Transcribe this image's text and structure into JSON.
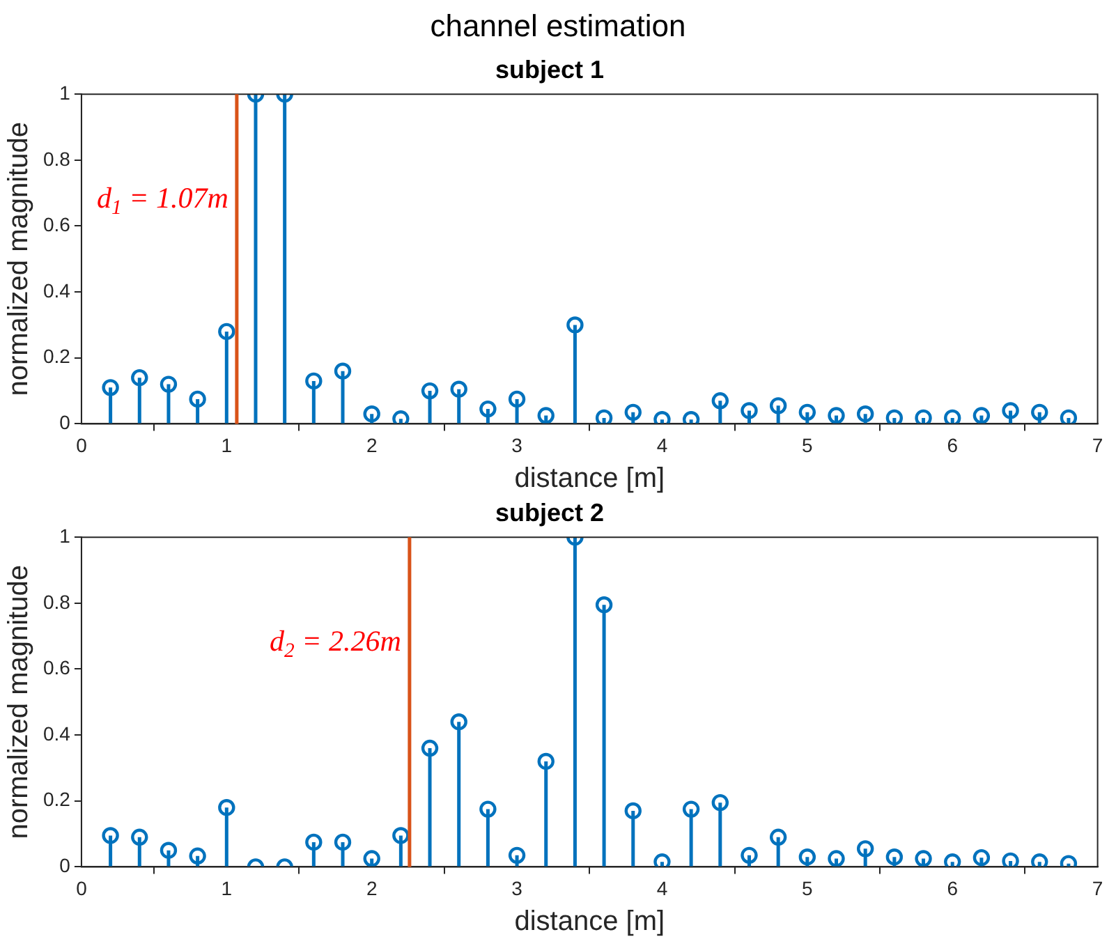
{
  "chart_data": [
    {
      "type": "lollipop",
      "title": "channel estimation",
      "subtitle": "subject 1",
      "xlabel": "distance [m]",
      "ylabel": "normalized magnitude",
      "x": [
        0.2,
        0.4,
        0.6,
        0.8,
        1.0,
        1.2,
        1.4,
        1.6,
        1.8,
        2.0,
        2.2,
        2.4,
        2.6,
        2.8,
        3.0,
        3.2,
        3.4,
        3.6,
        3.8,
        4.0,
        4.2,
        4.4,
        4.6,
        4.8,
        5.0,
        5.2,
        5.4,
        5.6,
        5.8,
        6.0,
        6.2,
        6.4,
        6.6,
        6.8
      ],
      "series": [
        {
          "color": "#0072bd",
          "values": [
            0.11,
            0.14,
            0.12,
            0.075,
            0.28,
            1,
            1,
            0.13,
            0.16,
            0.03,
            0.015,
            0.1,
            0.105,
            0.045,
            0.075,
            0.025,
            0.3,
            0.018,
            0.035,
            0.013,
            0.013,
            0.07,
            0.04,
            0.055,
            0.035,
            0.025,
            0.03,
            0.018,
            0.018,
            0.018,
            0.025,
            0.04,
            0.035,
            0.018
          ]
        }
      ],
      "xlim": [
        0,
        7
      ],
      "xticks": [
        0,
        1,
        2,
        3,
        4,
        5,
        6,
        7
      ],
      "ylim": [
        0,
        1
      ],
      "yticks": [
        0,
        0.2,
        0.4,
        0.6,
        0.8,
        1
      ],
      "grid": false,
      "legend": false,
      "marker": "circle",
      "ref_lines": [
        {
          "axis": "x",
          "value": 1.07,
          "color": "#d95319",
          "label": "d$_{1}$ = 1.07m"
        }
      ]
    },
    {
      "type": "lollipop",
      "title": "subject 2",
      "xlabel": "distance [m]",
      "ylabel": "normalized magnitude",
      "x": [
        0.2,
        0.4,
        0.6,
        0.8,
        1.0,
        1.2,
        1.4,
        1.6,
        1.8,
        2.0,
        2.2,
        2.4,
        2.6,
        2.8,
        3.0,
        3.2,
        3.4,
        3.6,
        3.8,
        4.0,
        4.2,
        4.4,
        4.6,
        4.8,
        5.0,
        5.2,
        5.4,
        5.6,
        5.8,
        6.0,
        6.2,
        6.4,
        6.6,
        6.8
      ],
      "series": [
        {
          "color": "#0072bd",
          "values": [
            0.095,
            0.09,
            0.05,
            0.033,
            0.18,
            0,
            0,
            0.075,
            0.075,
            0.025,
            0.095,
            0.36,
            0.44,
            0.175,
            0.035,
            0.32,
            1,
            0.795,
            0.17,
            0.015,
            0.175,
            0.195,
            0.035,
            0.09,
            0.03,
            0.025,
            0.055,
            0.03,
            0.025,
            0.015,
            0.028,
            0.018,
            0.015,
            0.01
          ]
        }
      ],
      "xlim": [
        0,
        7
      ],
      "xticks": [
        0,
        1,
        2,
        3,
        4,
        5,
        6,
        7
      ],
      "ylim": [
        0,
        1
      ],
      "yticks": [
        0,
        0.2,
        0.4,
        0.6,
        0.8,
        1
      ],
      "grid": false,
      "legend": false,
      "marker": "circle",
      "ref_lines": [
        {
          "axis": "x",
          "value": 2.26,
          "color": "#d95319",
          "label": "d$_{2}$ = 2.26m"
        }
      ]
    }
  ]
}
